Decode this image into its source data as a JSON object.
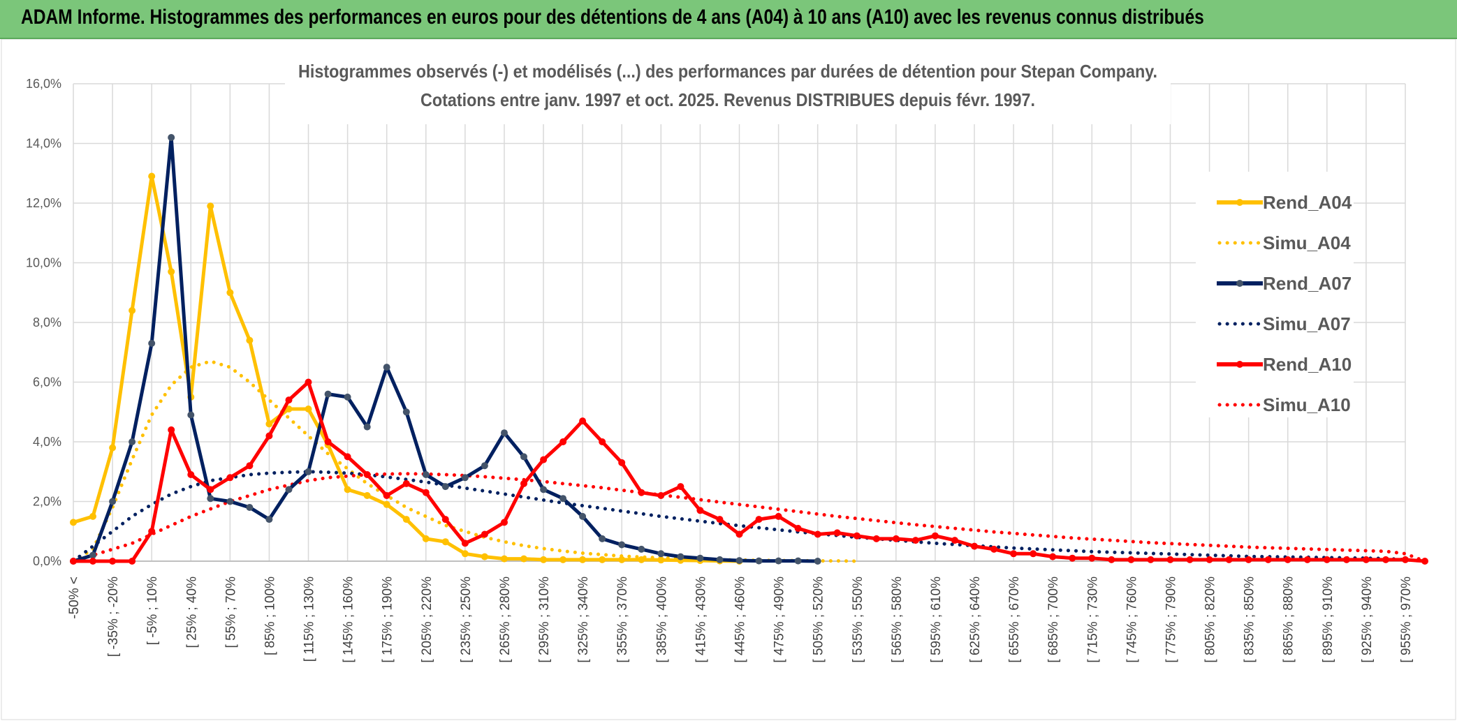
{
  "header": {
    "title": "ADAM Informe. Histogrammes des performances en euros pour des détentions de 4 ans (A04) à 10 ans (A10) avec les revenus connus distribués"
  },
  "colors": {
    "A04": "#ffc000",
    "A07": "#002060",
    "A10": "#ff0000",
    "marker_A07": "#44546a"
  },
  "chart_data": {
    "type": "line",
    "title": "Histogrammes observés (-) et modélisés (...) des performances par durées de détention pour Stepan Company.",
    "subtitle": "Cotations entre janv. 1997 et oct. 2025. Revenus DISTRIBUES depuis févr. 1997.",
    "ylim": [
      0,
      16
    ],
    "yticks": [
      "0,0%",
      "2,0%",
      "4,0%",
      "6,0%",
      "8,0%",
      "10,0%",
      "12,0%",
      "14,0%",
      "16,0%"
    ],
    "x_labels": [
      "-50% <",
      "[ -35% ; -20%",
      "[ -5% ; 10%",
      "[ 25% ; 40%",
      "[ 55% ; 70%",
      "[ 85% ; 100%",
      "[ 115% ; 130%",
      "[ 145% ; 160%",
      "[ 175% ; 190%",
      "[ 205% ; 220%",
      "[ 235% ; 250%",
      "[ 265% ; 280%",
      "[ 295% ; 310%",
      "[ 325% ; 340%",
      "[ 355% ; 370%",
      "[ 385% ; 400%",
      "[ 415% ; 430%",
      "[ 445% ; 460%",
      "[ 475% ; 490%",
      "[ 505% ; 520%",
      "[ 535% ; 550%",
      "[ 565% ; 580%",
      "[ 595% ; 610%",
      "[ 625% ; 640%",
      "[ 655% ; 670%",
      "[ 685% ; 700%",
      "[ 715% ; 730%",
      "[ 745% ; 760%",
      "[ 775% ; 790%",
      "[ 805% ; 820%",
      "[ 835% ; 850%",
      "[ 865% ; 880%",
      "[ 895% ; 910%",
      "[ 925% ; 940%",
      "[ 955% ; 970%"
    ],
    "legend": [
      "Rend_A04",
      "Simu_A04",
      "Rend_A07",
      "Simu_A07",
      "Rend_A10",
      "Simu_A10"
    ],
    "series": [
      {
        "name": "Rend_A04",
        "style": "solid",
        "values": [
          1.3,
          1.5,
          3.8,
          8.4,
          12.9,
          9.7,
          5.5,
          11.9,
          9.0,
          7.4,
          4.6,
          5.1,
          5.1,
          3.9,
          2.4,
          2.2,
          1.9,
          1.4,
          0.75,
          0.65,
          0.25,
          0.15,
          0.08,
          0.08,
          0.05,
          0.05,
          0.05,
          0.05,
          0.05,
          0.05,
          0.04,
          0.03,
          0.02,
          0.01,
          0.0
        ]
      },
      {
        "name": "Simu_A04",
        "style": "dotted",
        "values": [
          0.0,
          0.4,
          1.8,
          3.4,
          4.9,
          5.9,
          6.5,
          6.7,
          6.5,
          6.0,
          5.4,
          4.8,
          4.2,
          3.6,
          3.1,
          2.6,
          2.2,
          1.8,
          1.5,
          1.2,
          1.0,
          0.8,
          0.65,
          0.52,
          0.42,
          0.34,
          0.27,
          0.22,
          0.17,
          0.14,
          0.11,
          0.09,
          0.07,
          0.05,
          0.04,
          0.03,
          0.02,
          0.02,
          0.01,
          0.01,
          0.0
        ]
      },
      {
        "name": "Rend_A07",
        "style": "solid",
        "values": [
          0.0,
          0.2,
          2.0,
          4.0,
          7.3,
          14.2,
          4.9,
          2.1,
          2.0,
          1.8,
          1.4,
          2.4,
          3.0,
          5.6,
          5.5,
          4.5,
          6.5,
          5.0,
          2.9,
          2.5,
          2.8,
          3.2,
          4.3,
          3.5,
          2.4,
          2.1,
          1.5,
          0.75,
          0.55,
          0.4,
          0.25,
          0.15,
          0.1,
          0.05,
          0.02,
          0.01,
          0.01,
          0.01,
          0.0
        ]
      },
      {
        "name": "Simu_A07",
        "style": "dotted",
        "values": [
          0.0,
          0.5,
          1.0,
          1.5,
          1.9,
          2.25,
          2.5,
          2.7,
          2.8,
          2.9,
          2.95,
          2.98,
          3.0,
          2.98,
          2.95,
          2.9,
          2.82,
          2.74,
          2.65,
          2.55,
          2.45,
          2.35,
          2.25,
          2.15,
          2.05,
          1.95,
          1.86,
          1.77,
          1.68,
          1.59,
          1.5,
          1.42,
          1.34,
          1.26,
          1.19,
          1.12,
          1.05,
          0.98,
          0.92,
          0.86,
          0.8,
          0.75,
          0.7,
          0.65,
          0.6,
          0.56,
          0.52,
          0.48,
          0.44,
          0.41,
          0.38,
          0.35,
          0.32,
          0.3,
          0.28,
          0.26,
          0.24,
          0.22,
          0.2,
          0.18,
          0.16,
          0.15,
          0.14,
          0.13,
          0.12,
          0.11,
          0.1,
          0.09,
          0.05,
          0.0
        ]
      },
      {
        "name": "Rend_A10",
        "style": "solid",
        "values": [
          0.0,
          0.0,
          0.0,
          0.0,
          1.0,
          4.4,
          2.9,
          2.4,
          2.8,
          3.2,
          4.2,
          5.4,
          6.0,
          4.0,
          3.5,
          2.9,
          2.2,
          2.6,
          2.3,
          1.4,
          0.6,
          0.9,
          1.3,
          2.6,
          3.4,
          4.0,
          4.7,
          4.0,
          3.3,
          2.3,
          2.2,
          2.5,
          1.7,
          1.4,
          0.9,
          1.4,
          1.5,
          1.1,
          0.9,
          0.95,
          0.85,
          0.75,
          0.75,
          0.7,
          0.85,
          0.7,
          0.5,
          0.4,
          0.25,
          0.25,
          0.15,
          0.1,
          0.1,
          0.05,
          0.05,
          0.05,
          0.05,
          0.05,
          0.05,
          0.05,
          0.05,
          0.05,
          0.05,
          0.05,
          0.05,
          0.05,
          0.05,
          0.05,
          0.05,
          0.0
        ]
      },
      {
        "name": "Simu_A10",
        "style": "dotted",
        "values": [
          0.0,
          0.2,
          0.4,
          0.6,
          0.9,
          1.2,
          1.5,
          1.75,
          2.0,
          2.2,
          2.4,
          2.55,
          2.7,
          2.8,
          2.85,
          2.9,
          2.92,
          2.93,
          2.92,
          2.9,
          2.87,
          2.83,
          2.78,
          2.73,
          2.67,
          2.6,
          2.53,
          2.46,
          2.38,
          2.3,
          2.22,
          2.14,
          2.06,
          1.98,
          1.9,
          1.82,
          1.74,
          1.66,
          1.58,
          1.5,
          1.43,
          1.36,
          1.29,
          1.22,
          1.16,
          1.1,
          1.04,
          0.98,
          0.93,
          0.88,
          0.83,
          0.78,
          0.74,
          0.7,
          0.66,
          0.62,
          0.59,
          0.56,
          0.53,
          0.5,
          0.47,
          0.45,
          0.43,
          0.41,
          0.39,
          0.37,
          0.35,
          0.33,
          0.25,
          0.0
        ]
      }
    ]
  }
}
